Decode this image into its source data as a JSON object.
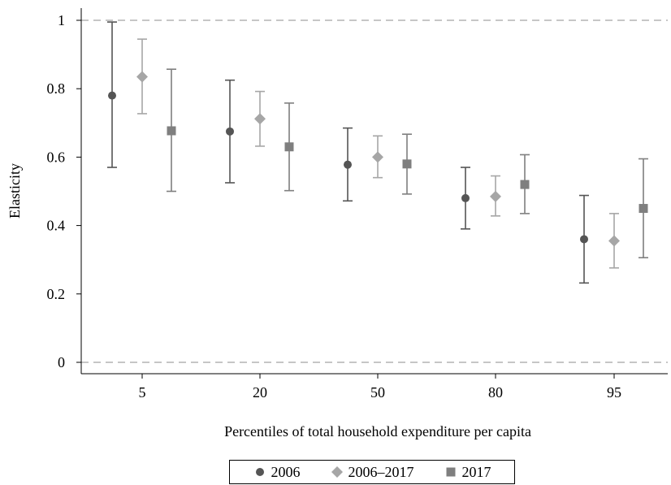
{
  "chart_data": {
    "type": "scatter",
    "xlabel": "Percentiles of total household expenditure per capita",
    "ylabel": "Elasticity",
    "categories": [
      "5",
      "20",
      "50",
      "80",
      "95"
    ],
    "ylim": [
      0,
      1
    ],
    "yticks": [
      "0",
      "0.2",
      "0.4",
      "0.6",
      "0.8",
      "1"
    ],
    "reference_lines": [
      0,
      1
    ],
    "legend_position": "bottom",
    "series": [
      {
        "name": "2006",
        "marker": "circle",
        "color": "#555555",
        "values": [
          0.78,
          0.675,
          0.578,
          0.48,
          0.36
        ],
        "lower": [
          0.57,
          0.525,
          0.472,
          0.39,
          0.232
        ],
        "upper": [
          0.995,
          0.825,
          0.685,
          0.57,
          0.488
        ]
      },
      {
        "name": "2006–2017",
        "marker": "diamond",
        "color": "#a6a6a6",
        "values": [
          0.835,
          0.712,
          0.6,
          0.485,
          0.355
        ],
        "lower": [
          0.727,
          0.632,
          0.54,
          0.428,
          0.276
        ],
        "upper": [
          0.945,
          0.792,
          0.662,
          0.545,
          0.435
        ]
      },
      {
        "name": "2017",
        "marker": "square",
        "color": "#7f7f7f",
        "values": [
          0.677,
          0.63,
          0.58,
          0.52,
          0.45
        ],
        "lower": [
          0.5,
          0.502,
          0.492,
          0.435,
          0.306
        ],
        "upper": [
          0.857,
          0.758,
          0.667,
          0.607,
          0.595
        ]
      }
    ]
  },
  "legend": {
    "items": [
      {
        "label": "2006",
        "marker": "circle",
        "color": "#555555"
      },
      {
        "label": "2006–2017",
        "marker": "diamond",
        "color": "#a6a6a6"
      },
      {
        "label": "2017",
        "marker": "square",
        "color": "#7f7f7f"
      }
    ]
  }
}
